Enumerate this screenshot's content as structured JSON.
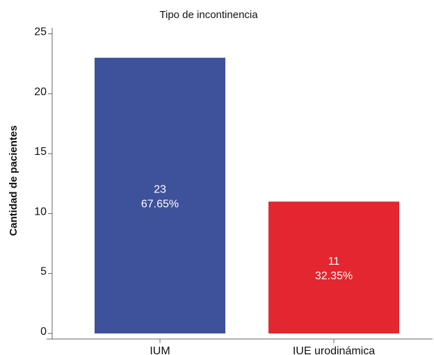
{
  "chart_data": {
    "type": "bar",
    "title": "Tipo de incontinencia",
    "xlabel": "",
    "ylabel": "Cantidad de pacientes",
    "categories": [
      "IUM",
      "IUE urodinámica"
    ],
    "values": [
      23,
      11
    ],
    "value_labels": [
      "23",
      "11"
    ],
    "percent_labels": [
      "67.65%",
      "32.35%"
    ],
    "colors": [
      "#3e519b",
      "#e3262f"
    ],
    "ylim": [
      0,
      25.5
    ],
    "yticks": [
      "0",
      "5",
      "10",
      "15",
      "20",
      "25"
    ],
    "grid": false,
    "legend": "none"
  }
}
